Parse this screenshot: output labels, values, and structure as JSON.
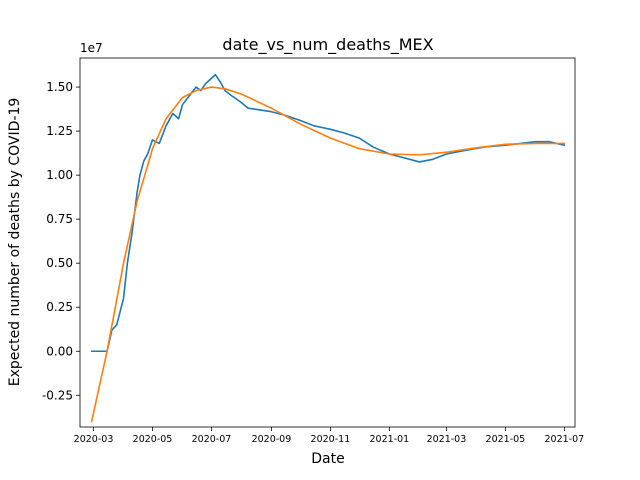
{
  "chart_data": {
    "type": "line",
    "title": "date_vs_num_deaths_MEX",
    "xlabel": "Date",
    "ylabel": "Expected number of deaths by COVID-19",
    "y_offset_label": "1e7",
    "y_scale": 10000000,
    "ylim": [
      -0.43,
      1.665
    ],
    "xlim": [
      "2020-02-16",
      "2021-07-12"
    ],
    "grid": false,
    "x_ticks": [
      "2020-03",
      "2020-05",
      "2020-07",
      "2020-09",
      "2020-11",
      "2021-01",
      "2021-03",
      "2021-05",
      "2021-07"
    ],
    "y_ticks": [
      "-0.25",
      "0.00",
      "0.25",
      "0.50",
      "0.75",
      "1.00",
      "1.25",
      "1.50"
    ],
    "series": [
      {
        "color": "#1f77b4",
        "points": [
          [
            "2020-02-28",
            0.0
          ],
          [
            "2020-03-10",
            0.0
          ],
          [
            "2020-03-15",
            0.0
          ],
          [
            "2020-03-20",
            0.12
          ],
          [
            "2020-03-25",
            0.15
          ],
          [
            "2020-04-01",
            0.3
          ],
          [
            "2020-04-05",
            0.5
          ],
          [
            "2020-04-10",
            0.68
          ],
          [
            "2020-04-15",
            0.9
          ],
          [
            "2020-04-18",
            1.0
          ],
          [
            "2020-04-22",
            1.08
          ],
          [
            "2020-04-26",
            1.12
          ],
          [
            "2020-05-01",
            1.2
          ],
          [
            "2020-05-08",
            1.18
          ],
          [
            "2020-05-15",
            1.28
          ],
          [
            "2020-05-22",
            1.35
          ],
          [
            "2020-05-28",
            1.32
          ],
          [
            "2020-06-01",
            1.4
          ],
          [
            "2020-06-08",
            1.45
          ],
          [
            "2020-06-15",
            1.5
          ],
          [
            "2020-06-20",
            1.48
          ],
          [
            "2020-06-25",
            1.52
          ],
          [
            "2020-07-01",
            1.55
          ],
          [
            "2020-07-05",
            1.57
          ],
          [
            "2020-07-10",
            1.53
          ],
          [
            "2020-07-15",
            1.48
          ],
          [
            "2020-07-22",
            1.45
          ],
          [
            "2020-07-30",
            1.42
          ],
          [
            "2020-08-08",
            1.38
          ],
          [
            "2020-08-20",
            1.37
          ],
          [
            "2020-09-01",
            1.36
          ],
          [
            "2020-09-15",
            1.34
          ],
          [
            "2020-10-01",
            1.31
          ],
          [
            "2020-10-15",
            1.28
          ],
          [
            "2020-11-01",
            1.26
          ],
          [
            "2020-11-15",
            1.24
          ],
          [
            "2020-12-01",
            1.21
          ],
          [
            "2020-12-15",
            1.16
          ],
          [
            "2021-01-01",
            1.12
          ],
          [
            "2021-01-15",
            1.1
          ],
          [
            "2021-02-01",
            1.075
          ],
          [
            "2021-02-15",
            1.09
          ],
          [
            "2021-03-01",
            1.12
          ],
          [
            "2021-03-20",
            1.14
          ],
          [
            "2021-04-10",
            1.16
          ],
          [
            "2021-05-01",
            1.17
          ],
          [
            "2021-06-01",
            1.19
          ],
          [
            "2021-06-15",
            1.19
          ],
          [
            "2021-07-01",
            1.17
          ]
        ]
      },
      {
        "color": "#ff7f0e",
        "points": [
          [
            "2020-02-28",
            -0.4
          ],
          [
            "2020-03-15",
            0.0
          ],
          [
            "2020-04-01",
            0.5
          ],
          [
            "2020-04-15",
            0.85
          ],
          [
            "2020-05-01",
            1.15
          ],
          [
            "2020-05-15",
            1.32
          ],
          [
            "2020-06-01",
            1.44
          ],
          [
            "2020-06-15",
            1.48
          ],
          [
            "2020-07-01",
            1.5
          ],
          [
            "2020-07-15",
            1.49
          ],
          [
            "2020-08-01",
            1.46
          ],
          [
            "2020-09-01",
            1.38
          ],
          [
            "2020-10-01",
            1.29
          ],
          [
            "2020-11-01",
            1.21
          ],
          [
            "2020-12-01",
            1.15
          ],
          [
            "2021-01-01",
            1.12
          ],
          [
            "2021-02-01",
            1.115
          ],
          [
            "2021-03-01",
            1.13
          ],
          [
            "2021-04-01",
            1.155
          ],
          [
            "2021-05-01",
            1.175
          ],
          [
            "2021-06-01",
            1.18
          ],
          [
            "2021-07-01",
            1.18
          ]
        ]
      }
    ]
  }
}
